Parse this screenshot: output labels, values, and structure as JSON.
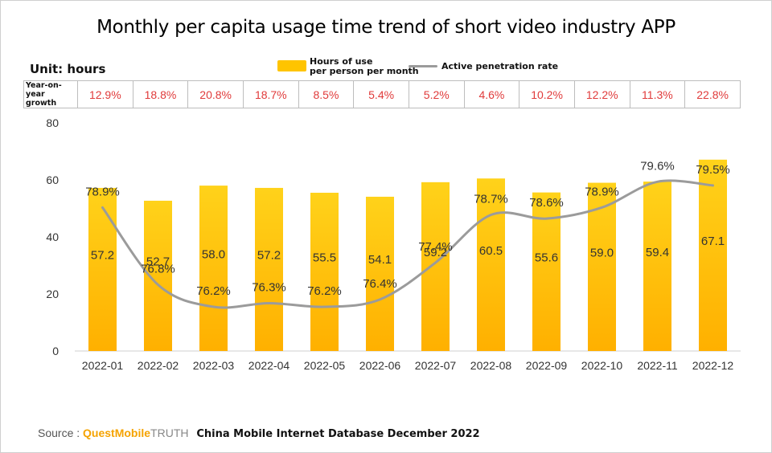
{
  "title": "Monthly per capita usage time trend of short video industry APP",
  "unit_label": "Unit: hours",
  "legend": {
    "bar_label_line1": "Hours of use",
    "bar_label_line2": "per person per month",
    "line_label": "Active penetration rate"
  },
  "yoy": {
    "label_line1": "Year-on-year",
    "label_line2": "growth",
    "values": [
      "12.9%",
      "18.8%",
      "20.8%",
      "18.7%",
      "8.5%",
      "5.4%",
      "5.2%",
      "4.6%",
      "10.2%",
      "12.2%",
      "11.3%",
      "22.8%"
    ]
  },
  "source": {
    "label": "Source :",
    "brand": "QuestMobile",
    "brand_suffix": "TRUTH",
    "database": "China Mobile Internet Database December 2022"
  },
  "colors": {
    "bar_top": "#ffd21a",
    "bar_bottom": "#ffb000",
    "line": "#9b9b9b",
    "growth_text": "#e03a3a"
  },
  "chart_data": {
    "type": "bar",
    "categories": [
      "2022-01",
      "2022-02",
      "2022-03",
      "2022-04",
      "2022-05",
      "2022-06",
      "2022-07",
      "2022-08",
      "2022-09",
      "2022-10",
      "2022-11",
      "2022-12"
    ],
    "series": [
      {
        "name": "Hours of use per person per month",
        "type": "bar",
        "values": [
          57.2,
          52.7,
          58.0,
          57.2,
          55.5,
          54.1,
          59.2,
          60.5,
          55.6,
          59.0,
          59.4,
          67.1
        ],
        "labels": [
          "57.2",
          "52.7",
          "58.0",
          "57.2",
          "55.5",
          "54.1",
          "59.2",
          "60.5",
          "55.6",
          "59.0",
          "59.4",
          "67.1"
        ]
      },
      {
        "name": "Active penetration rate",
        "type": "line",
        "smooth": true,
        "values": [
          78.9,
          76.8,
          76.2,
          76.3,
          76.2,
          76.4,
          77.4,
          78.7,
          78.6,
          78.9,
          79.6,
          79.5
        ],
        "labels": [
          "78.9%",
          "76.8%",
          "76.2%",
          "76.3%",
          "76.2%",
          "76.4%",
          "77.4%",
          "78.7%",
          "78.6%",
          "78.9%",
          "79.6%",
          "79.5%"
        ]
      }
    ],
    "ylim": [
      0,
      80
    ],
    "yticks": [
      0,
      20,
      40,
      60,
      80
    ],
    "grid": false,
    "legend_position": "top-center"
  }
}
